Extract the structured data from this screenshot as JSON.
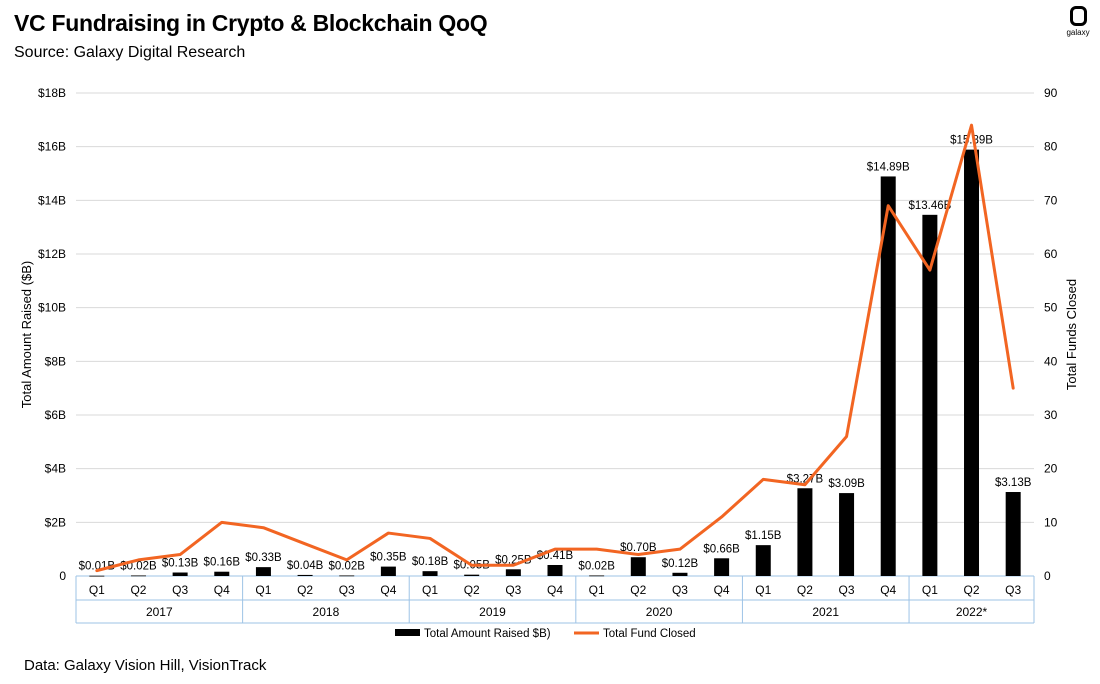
{
  "header": {
    "title": "VC Fundraising in Crypto & Blockchain QoQ",
    "subtitle": "Source: Galaxy Digital Research"
  },
  "logo": {
    "text": "galaxy"
  },
  "footer": {
    "note": "Data: Galaxy Vision Hill, VisionTrack"
  },
  "colors": {
    "bars": "#000000",
    "line": "#F26522",
    "grid": "#D9D9D9",
    "axis_border": "#9DC3E6"
  },
  "chart_data": {
    "type": "bar+line",
    "title": "VC Fundraising in Crypto & Blockchain QoQ",
    "categories": [
      "Q1",
      "Q2",
      "Q3",
      "Q4",
      "Q1",
      "Q2",
      "Q3",
      "Q4",
      "Q1",
      "Q2",
      "Q3",
      "Q4",
      "Q1",
      "Q2",
      "Q3",
      "Q4",
      "Q1",
      "Q2",
      "Q3",
      "Q4",
      "Q1",
      "Q2",
      "Q3"
    ],
    "groups": [
      {
        "label": "2017",
        "count": 4
      },
      {
        "label": "2018",
        "count": 4
      },
      {
        "label": "2019",
        "count": 4
      },
      {
        "label": "2020",
        "count": 4
      },
      {
        "label": "2021",
        "count": 4
      },
      {
        "label": "2022*",
        "count": 3
      }
    ],
    "series": [
      {
        "name": "Total Amount Raised $B)",
        "type": "bar",
        "axis": "left",
        "values": [
          0.01,
          0.02,
          0.13,
          0.16,
          0.33,
          0.04,
          0.02,
          0.35,
          0.18,
          0.05,
          0.25,
          0.41,
          0.02,
          0.7,
          0.12,
          0.66,
          1.15,
          3.27,
          3.09,
          14.89,
          13.46,
          15.89,
          3.13
        ],
        "labels": [
          "$0.01B",
          "$0.02B",
          "$0.13B",
          "$0.16B",
          "$0.33B",
          "$0.04B",
          "$0.02B",
          "$0.35B",
          "$0.18B",
          "$0.05B",
          "$0.25B",
          "$0.41B",
          "$0.02B",
          "$0.70B",
          "$0.12B",
          "$0.66B",
          "$1.15B",
          "$3.27B",
          "$3.09B",
          "$14.89B",
          "$13.46B",
          "$15.89B",
          "$3.13B"
        ]
      },
      {
        "name": "Total Fund Closed",
        "type": "line",
        "axis": "right",
        "values": [
          1,
          3,
          4,
          10,
          9,
          6,
          3,
          8,
          7,
          2,
          2,
          5,
          5,
          4,
          5,
          11,
          18,
          17,
          26,
          69,
          57,
          84,
          35
        ]
      }
    ],
    "y_left": {
      "label": "Total Amount Raised ($B)",
      "range": [
        0,
        18
      ],
      "ticks": [
        0,
        2,
        4,
        6,
        8,
        10,
        12,
        14,
        16,
        18
      ],
      "tick_labels": [
        "0",
        "$2B",
        "$4B",
        "$6B",
        "$8B",
        "$10B",
        "$12B",
        "$14B",
        "$16B",
        "$18B"
      ]
    },
    "y_right": {
      "label": "Total Funds Closed",
      "range": [
        0,
        90
      ],
      "ticks": [
        0,
        10,
        20,
        30,
        40,
        50,
        60,
        70,
        80,
        90
      ],
      "tick_labels": [
        "0",
        "10",
        "20",
        "30",
        "40",
        "50",
        "60",
        "70",
        "80",
        "90"
      ]
    },
    "legend": {
      "position": "bottom-center"
    }
  }
}
